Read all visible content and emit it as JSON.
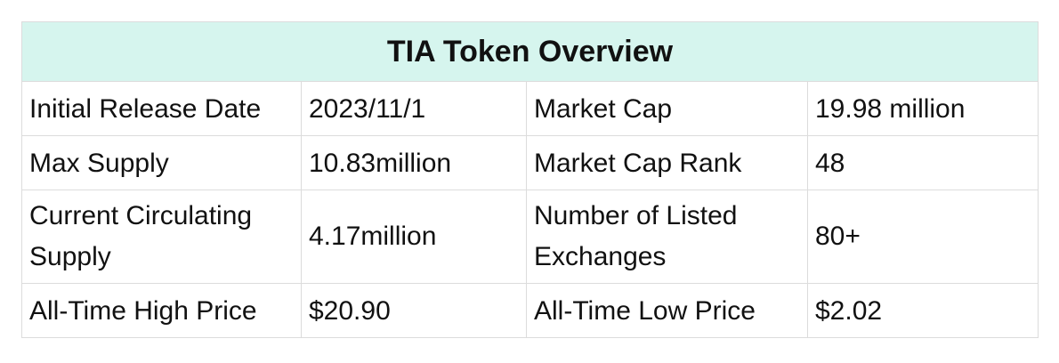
{
  "title": "TIA Token Overview",
  "rows": [
    {
      "label_left": "Initial Release Date",
      "value_left": "2023/11/1",
      "label_right": "Market Cap",
      "value_right": "19.98 million"
    },
    {
      "label_left": "Max Supply",
      "value_left": "10.83million",
      "label_right": "Market Cap Rank",
      "value_right": "48"
    },
    {
      "label_left": "Current Circulating Supply",
      "value_left": "4.17million",
      "label_right": "Number of Listed Exchanges",
      "value_right": "80+"
    },
    {
      "label_left": "All-Time High Price",
      "value_left": "$20.90",
      "label_right": "All-Time Low Price",
      "value_right": "$2.02"
    }
  ],
  "colors": {
    "header_background": "#d6f5ee",
    "border": "#dcdcdc",
    "text": "#111111"
  }
}
